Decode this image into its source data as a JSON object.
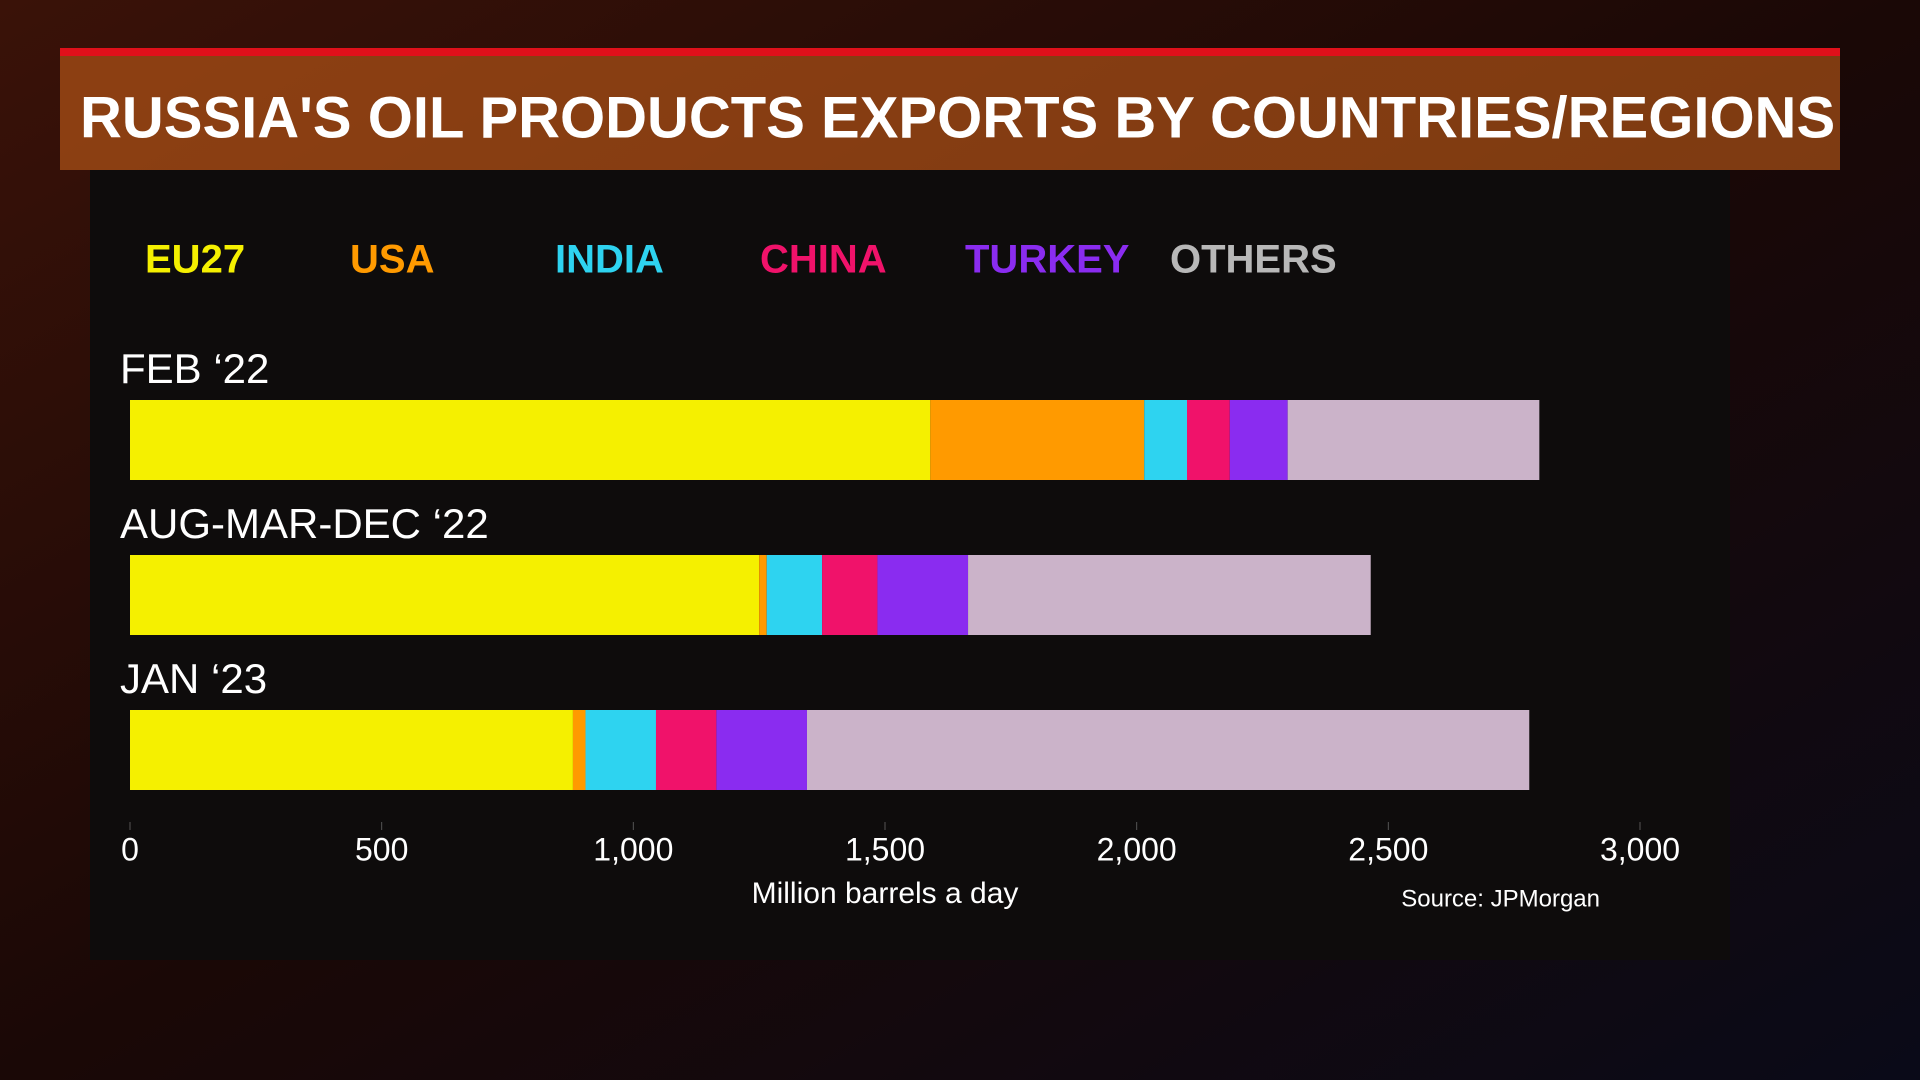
{
  "chart_data": {
    "type": "stacked-bar-horizontal",
    "title": "RUSSIA'S OIL PRODUCTS EXPORTS BY COUNTRIES/REGIONS",
    "categories": [
      "FEB ‘22",
      "AUG-MAR-DEC ‘22",
      "JAN ‘23"
    ],
    "series": [
      {
        "name": "EU27",
        "color": "#f5f000",
        "values": [
          1590,
          1250,
          880
        ]
      },
      {
        "name": "USA",
        "color": "#ff9a00",
        "values": [
          425,
          15,
          25
        ]
      },
      {
        "name": "INDIA",
        "color": "#2ed3f0",
        "values": [
          85,
          110,
          140
        ]
      },
      {
        "name": "CHINA",
        "color": "#f0126a",
        "values": [
          85,
          110,
          120
        ]
      },
      {
        "name": "TURKEY",
        "color": "#8a2cf0",
        "values": [
          115,
          180,
          180
        ]
      },
      {
        "name": "OTHERS",
        "color": "#cbb3c9",
        "values": [
          500,
          800,
          1435
        ]
      }
    ],
    "xlim": [
      0,
      3000
    ],
    "xticks": [
      0,
      500,
      {
        "value": 1000,
        "label": "1,000"
      },
      {
        "value": 1500,
        "label": "1,500"
      },
      {
        "value": 2000,
        "label": "2,000"
      },
      {
        "value": 2500,
        "label": "2,500"
      },
      {
        "value": 3000,
        "label": "3,000"
      }
    ],
    "xlabel": "Million barrels a day",
    "source": "Source: JPMorgan",
    "legend": "top"
  }
}
